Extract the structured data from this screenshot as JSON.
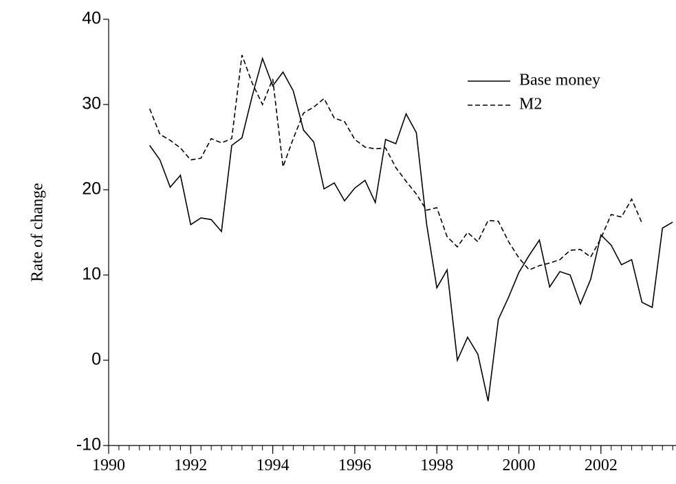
{
  "chart_data": {
    "type": "line",
    "y_label": "Rate of change",
    "x": [
      1991,
      1991.25,
      1991.5,
      1991.75,
      1992,
      1992.25,
      1992.5,
      1992.75,
      1993,
      1993.25,
      1993.5,
      1993.75,
      1994,
      1994.25,
      1994.5,
      1994.75,
      1995,
      1995.25,
      1995.5,
      1995.75,
      1996,
      1996.25,
      1996.5,
      1996.75,
      1997,
      1997.25,
      1997.5,
      1997.75,
      1998,
      1998.25,
      1998.5,
      1998.75,
      1999,
      1999.25,
      1999.5,
      1999.75,
      2000,
      2000.25,
      2000.5,
      2000.75,
      2001,
      2001.25,
      2001.5,
      2001.75,
      2002,
      2002.25,
      2002.5,
      2002.75,
      2003,
      2003.25,
      2003.5,
      2003.75
    ],
    "series": [
      {
        "name": "Base money",
        "color": "#000000",
        "dash": "solid",
        "values": [
          25.2,
          23.5,
          20.3,
          21.7,
          15.9,
          16.7,
          16.5,
          15.1,
          25.2,
          26.1,
          31.0,
          35.4,
          32.2,
          33.8,
          31.6,
          27.0,
          25.6,
          20.1,
          20.8,
          18.7,
          20.2,
          21.1,
          18.5,
          25.9,
          25.4,
          28.9,
          26.7,
          16.0,
          8.5,
          10.6,
          0.0,
          2.7,
          0.7,
          -4.8,
          4.8,
          7.4,
          10.3,
          12.3,
          14.1,
          8.6,
          10.4,
          10.0,
          6.6,
          9.5,
          14.7,
          13.5,
          11.2,
          11.8,
          6.8,
          6.2,
          15.5,
          16.2
        ]
      },
      {
        "name": "M2",
        "color": "#000000",
        "dash": "dashed",
        "values": [
          29.5,
          26.5,
          25.8,
          24.9,
          23.5,
          23.7,
          26.0,
          25.5,
          26.0,
          35.8,
          32.5,
          30.0,
          33.0,
          22.7,
          26.0,
          29.0,
          29.7,
          30.7,
          28.4,
          28.0,
          25.9,
          25.0,
          24.8,
          24.9,
          22.6,
          21.0,
          19.5,
          17.6,
          17.9,
          14.5,
          13.3,
          15.0,
          13.9,
          16.4,
          16.3,
          13.9,
          12.0,
          10.6,
          11.1,
          11.4,
          11.8,
          12.9,
          13.0,
          12.1,
          14.3,
          17.1,
          16.8,
          18.9,
          16.1,
          null,
          null,
          null
        ]
      }
    ],
    "xlim": [
      1990,
      2003.83
    ],
    "xticks": [
      1990,
      1992,
      1994,
      1996,
      1998,
      2000,
      2002
    ],
    "ylim": [
      -10,
      40
    ],
    "yticks": [
      -10,
      0,
      10,
      20,
      30,
      40
    ],
    "legend": "upper right"
  }
}
